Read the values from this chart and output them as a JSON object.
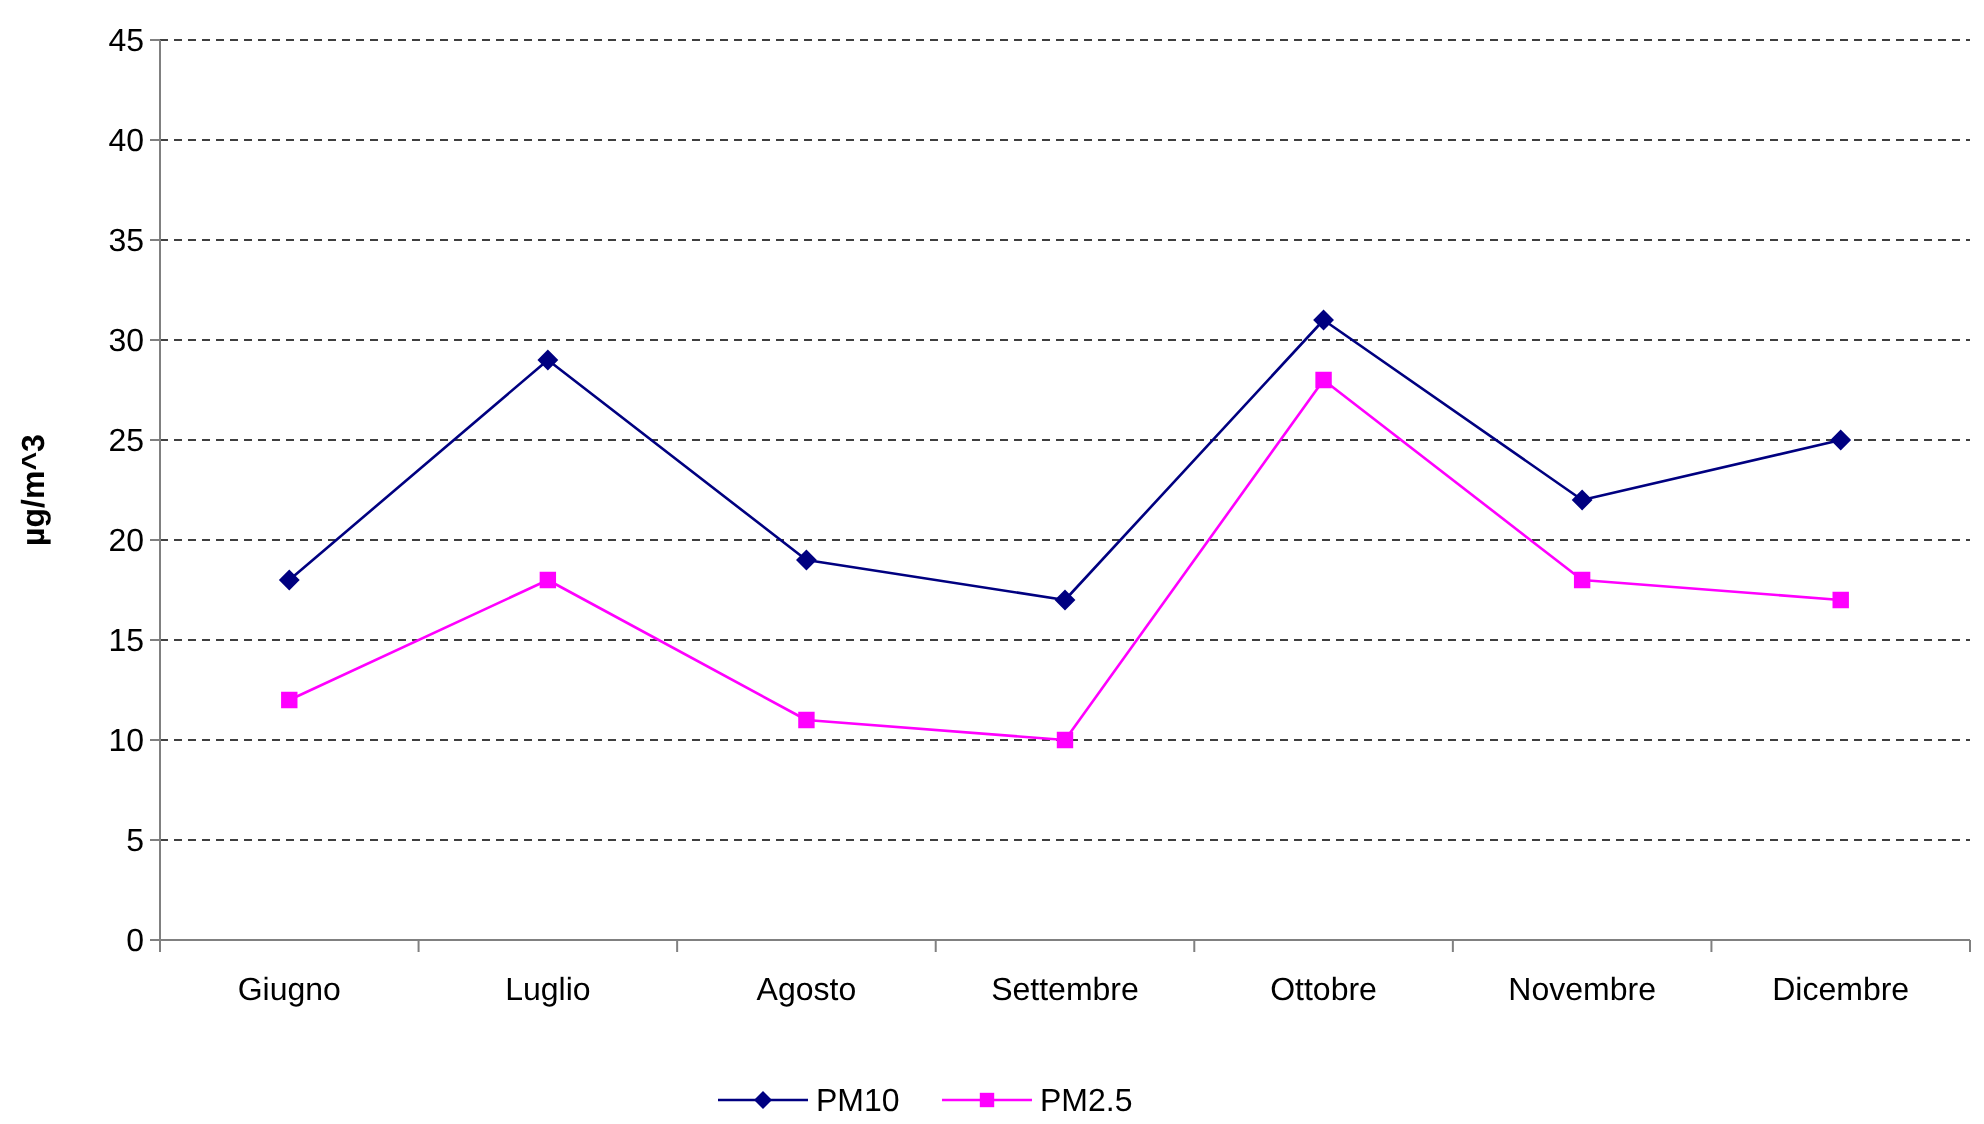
{
  "chart_data": {
    "type": "line",
    "ylabel": "µg/m^3",
    "categories": [
      "Giugno",
      "Luglio",
      "Agosto",
      "Settembre",
      "Ottobre",
      "Novembre",
      "Dicembre"
    ],
    "series": [
      {
        "name": "PM10",
        "color": "#000080",
        "marker": "diamond",
        "values": [
          18,
          29,
          19,
          17,
          31,
          22,
          25
        ]
      },
      {
        "name": "PM2.5",
        "color": "#ff00ff",
        "marker": "square",
        "values": [
          12,
          18,
          11,
          10,
          28,
          18,
          17
        ]
      }
    ],
    "ylim": [
      0,
      45
    ],
    "yticks": [
      0,
      5,
      10,
      15,
      20,
      25,
      30,
      35,
      40,
      45
    ],
    "grid": "y",
    "legend": "bottom"
  }
}
